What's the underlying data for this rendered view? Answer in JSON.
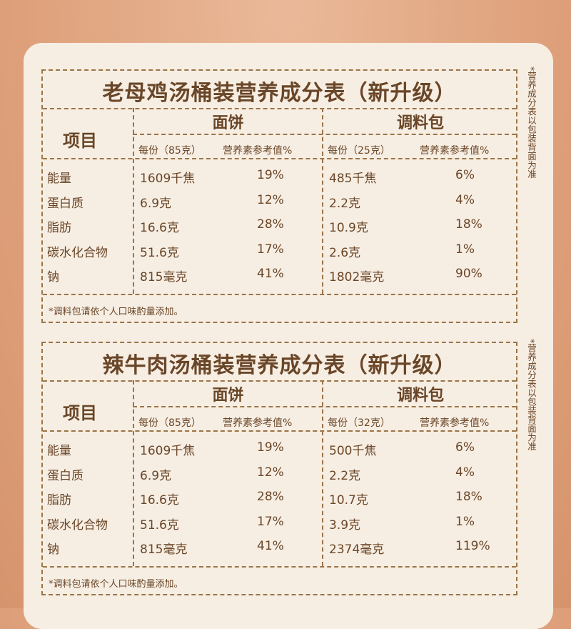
{
  "side_note": "*营养成分表以包装背面为准",
  "tables": [
    {
      "title": "老母鸡汤桶装营养成分表（新升级）",
      "item_header": "项目",
      "noodle": {
        "label": "面饼",
        "serving": "每份（85克）",
        "nrv": "营养素参考值%"
      },
      "seasoning": {
        "label": "调料包",
        "serving": "每份（25克）",
        "nrv": "营养素参考值%"
      },
      "rows": [
        {
          "name": "能量",
          "n_val": "1609千焦",
          "n_pct": "19%",
          "s_val": "485千焦",
          "s_pct": "6%"
        },
        {
          "name": "蛋白质",
          "n_val": "6.9克",
          "n_pct": "12%",
          "s_val": "2.2克",
          "s_pct": "4%"
        },
        {
          "name": "脂肪",
          "n_val": "16.6克",
          "n_pct": "28%",
          "s_val": "10.9克",
          "s_pct": "18%"
        },
        {
          "name": "碳水化合物",
          "n_val": "51.6克",
          "n_pct": "17%",
          "s_val": "2.6克",
          "s_pct": "1%"
        },
        {
          "name": "钠",
          "n_val": "815毫克",
          "n_pct": "41%",
          "s_val": "1802毫克",
          "s_pct": "90%"
        }
      ],
      "note": "*调料包请依个人口味酌量添加。"
    },
    {
      "title": "辣牛肉汤桶装营养成分表（新升级）",
      "item_header": "项目",
      "noodle": {
        "label": "面饼",
        "serving": "每份（85克）",
        "nrv": "营养素参考值%"
      },
      "seasoning": {
        "label": "调料包",
        "serving": "每份（32克）",
        "nrv": "营养素参考值%"
      },
      "rows": [
        {
          "name": "能量",
          "n_val": "1609千焦",
          "n_pct": "19%",
          "s_val": "500千焦",
          "s_pct": "6%"
        },
        {
          "name": "蛋白质",
          "n_val": "6.9克",
          "n_pct": "12%",
          "s_val": "2.2克",
          "s_pct": "4%"
        },
        {
          "name": "脂肪",
          "n_val": "16.6克",
          "n_pct": "28%",
          "s_val": "10.7克",
          "s_pct": "18%"
        },
        {
          "name": "碳水化合物",
          "n_val": "51.6克",
          "n_pct": "17%",
          "s_val": "3.9克",
          "s_pct": "1%"
        },
        {
          "name": "钠",
          "n_val": "815毫克",
          "n_pct": "41%",
          "s_val": "2374毫克",
          "s_pct": "119%"
        }
      ],
      "note": "*调料包请依个人口味酌量添加。"
    }
  ]
}
